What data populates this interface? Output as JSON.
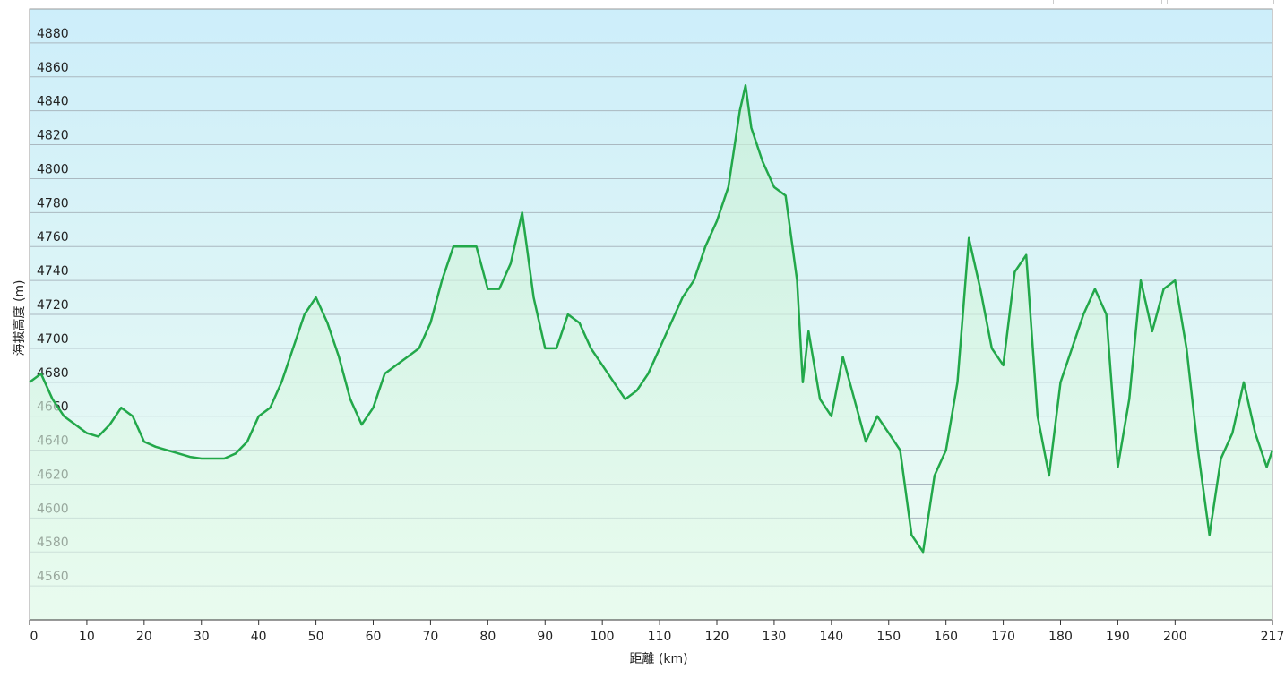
{
  "chart_data": {
    "type": "line",
    "x_label": "距離 (km)",
    "y_label": "海拔高度 (m)",
    "x": [
      0,
      2,
      4,
      6,
      8,
      10,
      12,
      14,
      16,
      18,
      20,
      22,
      24,
      26,
      28,
      30,
      32,
      34,
      36,
      38,
      40,
      42,
      44,
      46,
      48,
      50,
      52,
      54,
      56,
      58,
      60,
      62,
      64,
      66,
      68,
      70,
      72,
      74,
      76,
      78,
      80,
      82,
      84,
      86,
      88,
      90,
      92,
      94,
      96,
      98,
      100,
      102,
      104,
      106,
      108,
      110,
      112,
      114,
      116,
      118,
      120,
      122,
      124,
      125,
      126,
      128,
      130,
      132,
      134,
      135,
      136,
      138,
      140,
      142,
      144,
      146,
      148,
      150,
      152,
      154,
      156,
      158,
      160,
      162,
      164,
      166,
      168,
      170,
      172,
      174,
      176,
      178,
      180,
      182,
      184,
      186,
      188,
      190,
      192,
      194,
      196,
      198,
      200,
      202,
      204,
      206,
      208,
      210,
      212,
      214,
      216,
      217
    ],
    "series": [
      {
        "color": "#22a84a",
        "values": [
          4680,
          4685,
          4670,
          4660,
          4655,
          4650,
          4648,
          4655,
          4665,
          4660,
          4645,
          4642,
          4640,
          4638,
          4636,
          4635,
          4635,
          4635,
          4638,
          4645,
          4660,
          4665,
          4680,
          4700,
          4720,
          4730,
          4715,
          4695,
          4670,
          4655,
          4665,
          4685,
          4690,
          4695,
          4700,
          4715,
          4740,
          4760,
          4760,
          4760,
          4735,
          4735,
          4750,
          4780,
          4730,
          4700,
          4700,
          4720,
          4715,
          4700,
          4690,
          4680,
          4670,
          4675,
          4685,
          4700,
          4715,
          4730,
          4740,
          4760,
          4775,
          4795,
          4840,
          4855,
          4830,
          4810,
          4795,
          4790,
          4740,
          4680,
          4710,
          4670,
          4660,
          4695,
          4670,
          4645,
          4660,
          4650,
          4640,
          4590,
          4580,
          4625,
          4640,
          4680,
          4765,
          4735,
          4700,
          4690,
          4745,
          4755,
          4660,
          4625,
          4680,
          4700,
          4720,
          4735,
          4720,
          4630,
          4670,
          4740,
          4710,
          4735,
          4740,
          4700,
          4640,
          4590,
          4635,
          4650,
          4680,
          4650,
          4630,
          4640
        ]
      }
    ],
    "xlim": [
      0,
      217
    ],
    "xticks": [
      0,
      10,
      20,
      30,
      40,
      50,
      60,
      70,
      80,
      90,
      100,
      110,
      120,
      130,
      140,
      150,
      160,
      170,
      180,
      190,
      200,
      217
    ],
    "ylim": [
      4540,
      4900
    ],
    "yticks": [
      4560,
      4580,
      4600,
      4620,
      4640,
      4660,
      4680,
      4700,
      4720,
      4740,
      4760,
      4780,
      4800,
      4820,
      4840,
      4860,
      4880
    ],
    "grid": true
  }
}
